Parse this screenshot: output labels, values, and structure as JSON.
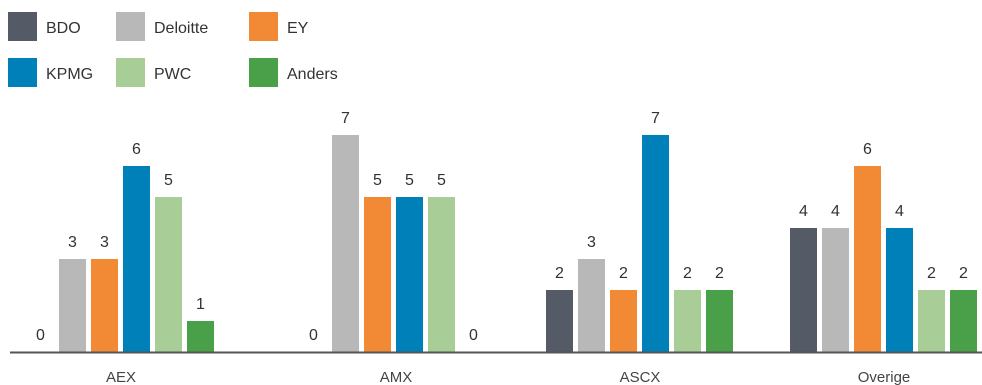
{
  "chart_data": {
    "type": "bar",
    "categories": [
      "AEX",
      "AMX",
      "ASCX",
      "Overige"
    ],
    "series": [
      {
        "name": "BDO",
        "color": "#545b66",
        "values": [
          0,
          0,
          2,
          4
        ]
      },
      {
        "name": "Deloitte",
        "color": "#b8b8b8",
        "values": [
          3,
          7,
          3,
          4
        ]
      },
      {
        "name": "EY",
        "color": "#f28a35",
        "values": [
          3,
          5,
          2,
          6
        ]
      },
      {
        "name": "KPMG",
        "color": "#0080b8",
        "values": [
          6,
          5,
          7,
          4
        ]
      },
      {
        "name": "PWC",
        "color": "#a8cd96",
        "values": [
          5,
          5,
          2,
          2
        ]
      },
      {
        "name": "Anders",
        "color": "#4aa048",
        "values": [
          1,
          0,
          2,
          2
        ]
      }
    ],
    "legend_position": "top-left",
    "grid": false,
    "ylim": [
      0,
      7
    ],
    "data_labels": true,
    "baseline_color": "#555555"
  }
}
